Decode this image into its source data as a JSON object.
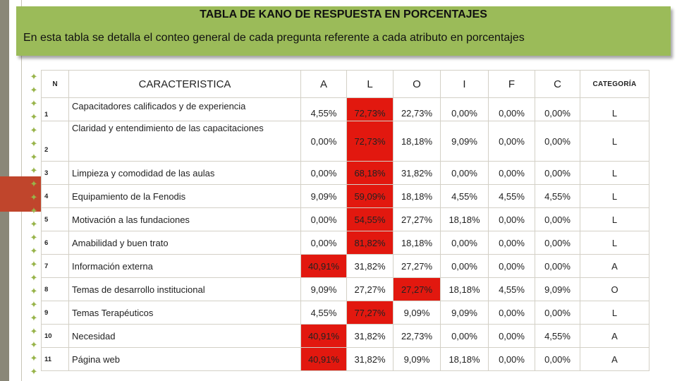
{
  "banner": {
    "title": "TABLA DE KANO DE RESPUESTA EN PORCENTAJES",
    "subtitle": "En esta tabla se detalla el conteo general de cada pregunta referente a cada atributo en porcentajes"
  },
  "colors": {
    "banner": "#9bbb59",
    "highlight": "#e2180f",
    "accent": "#c0452c"
  },
  "decorations": {
    "star_icon": "✦"
  },
  "table": {
    "headers": {
      "n": "N",
      "caracteristica": "CARACTERISTICA",
      "a": "A",
      "l": "L",
      "o": "O",
      "i": "I",
      "f": "F",
      "c": "C",
      "categoria": "CATEGORÍA"
    },
    "rows": [
      {
        "n": "1",
        "desc": "Capacitadores calificados y de experiencia",
        "a": "4,55%",
        "l": "72,73%",
        "o": "22,73%",
        "i": "0,00%",
        "f": "0,00%",
        "c": "0,00%",
        "cat": "L",
        "highlight": "l"
      },
      {
        "n": "2",
        "desc": "Claridad y entendimiento de las capacitaciones",
        "a": "0,00%",
        "l": "72,73%",
        "o": "18,18%",
        "i": "9,09%",
        "f": "0,00%",
        "c": "0,00%",
        "cat": "L",
        "highlight": "l"
      },
      {
        "n": "3",
        "desc": "Limpieza y comodidad de las aulas",
        "a": "0,00%",
        "l": "68,18%",
        "o": "31,82%",
        "i": "0,00%",
        "f": "0,00%",
        "c": "0,00%",
        "cat": "L",
        "highlight": "l"
      },
      {
        "n": "4",
        "desc": "Equipamiento de la Fenodis",
        "a": "9,09%",
        "l": "59,09%",
        "o": "18,18%",
        "i": "4,55%",
        "f": "4,55%",
        "c": "4,55%",
        "cat": "L",
        "highlight": "l"
      },
      {
        "n": "5",
        "desc": "Motivación a las fundaciones",
        "a": "0,00%",
        "l": "54,55%",
        "o": "27,27%",
        "i": "18,18%",
        "f": "0,00%",
        "c": "0,00%",
        "cat": "L",
        "highlight": "l"
      },
      {
        "n": "6",
        "desc": "Amabilidad y buen trato",
        "a": "0,00%",
        "l": "81,82%",
        "o": "18,18%",
        "i": "0,00%",
        "f": "0,00%",
        "c": "0,00%",
        "cat": "L",
        "highlight": "l"
      },
      {
        "n": "7",
        "desc": "Información externa",
        "a": "40,91%",
        "l": "31,82%",
        "o": "27,27%",
        "i": "0,00%",
        "f": "0,00%",
        "c": "0,00%",
        "cat": "A",
        "highlight": "a"
      },
      {
        "n": "8",
        "desc": "Temas de desarrollo institucional",
        "a": "9,09%",
        "l": "27,27%",
        "o": "27,27%",
        "i": "18,18%",
        "f": "4,55%",
        "c": "9,09%",
        "cat": "O",
        "highlight": "o"
      },
      {
        "n": "9",
        "desc": "Temas Terapéuticos",
        "a": "4,55%",
        "l": "77,27%",
        "o": "9,09%",
        "i": "9,09%",
        "f": "0,00%",
        "c": "0,00%",
        "cat": "L",
        "highlight": "l"
      },
      {
        "n": "10",
        "desc": "Necesidad",
        "a": "40,91%",
        "l": "31,82%",
        "o": "22,73%",
        "i": "0,00%",
        "f": "0,00%",
        "c": "4,55%",
        "cat": "A",
        "highlight": "a"
      },
      {
        "n": "11",
        "desc": "Página web",
        "a": "40,91%",
        "l": "31,82%",
        "o": "9,09%",
        "i": "18,18%",
        "f": "0,00%",
        "c": "0,00%",
        "cat": "A",
        "highlight": "a"
      }
    ]
  }
}
